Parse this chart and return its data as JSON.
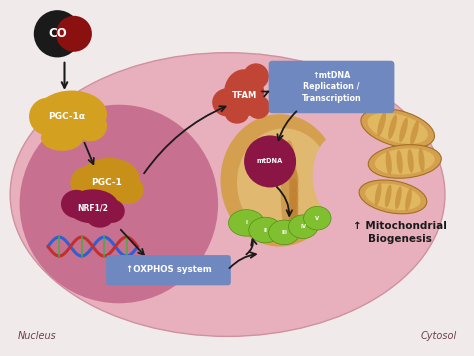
{
  "bg_color": "#f0eaea",
  "cell_outer_color": "#e8b0bc",
  "cell_outer_edge": "#d090a0",
  "nucleus_color": "#c87090",
  "co_ball_dark": "#1a1a1a",
  "co_ball_red": "#8b1010",
  "pgc1a_color": "#d4a020",
  "pgc1_color": "#c89018",
  "nrf_color": "#8b1545",
  "tfam_color": "#c04535",
  "mito_outer": "#d4a050",
  "mito_inner": "#e0b870",
  "mito_dark": "#c08030",
  "mtdna_color": "#8b1545",
  "complex_color": "#80c030",
  "complex_edge": "#509010",
  "box_color": "#7088c0",
  "box_text_color": "#ffffff",
  "arrow_color": "#1a1a1a",
  "dna_blue": "#3060d0",
  "dna_red": "#c03030",
  "dna_green": "#40b040",
  "mito2_outer": "#d4a050",
  "mito2_stripe": "#c08030",
  "label_nucleus": "Nucleus",
  "label_cytosol": "Cytosol",
  "label_co": "CO",
  "label_pgc1a": "PGC-1α",
  "label_pgc1": "PGC-1",
  "label_nrf": "NRF1/2",
  "label_tfam": "TFAM",
  "label_mtdna": "mtDNA",
  "label_oxphos": "↑OXPHOS system",
  "label_mtdna_rep": "↑mtDNA\nReplication /\nTranscription",
  "label_mito_bio": "↑ Mitochondrial\nBiogenesis"
}
